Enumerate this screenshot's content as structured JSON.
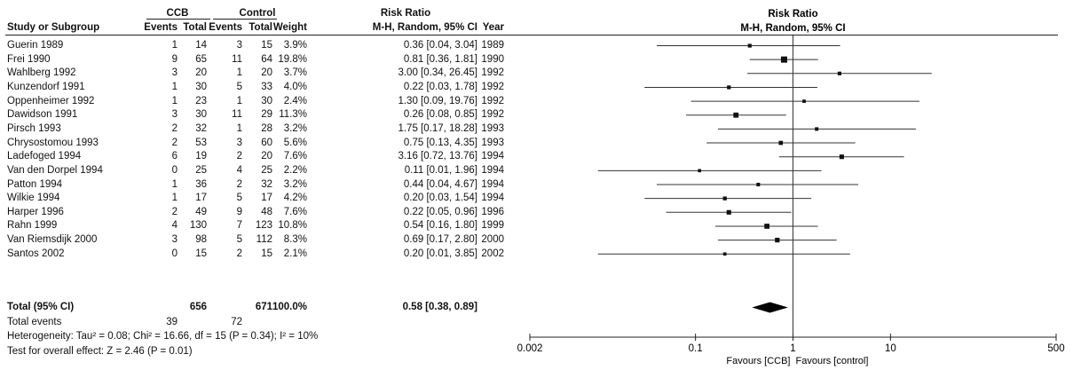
{
  "headers": {
    "ccb": "CCB",
    "control": "Control",
    "risk_ratio": "Risk Ratio",
    "study": "Study or Subgroup",
    "events": "Events",
    "total": "Total",
    "weight": "Weight",
    "method": "M-H, Random, 95% CI",
    "year": "Year",
    "plot_title": "Risk Ratio",
    "plot_method": "M-H, Random, 95% CI"
  },
  "studies": [
    {
      "name": "Guerin 1989",
      "ccb_events": "1",
      "ccb_total": "14",
      "ctrl_events": "3",
      "ctrl_total": "15",
      "weight": "3.9%",
      "rr_text": "0.36 [0.04, 3.04]",
      "year": "1989",
      "rr": 0.36,
      "lo": 0.04,
      "hi": 3.04,
      "w": 3.9
    },
    {
      "name": "Frei 1990",
      "ccb_events": "9",
      "ccb_total": "65",
      "ctrl_events": "11",
      "ctrl_total": "64",
      "weight": "19.8%",
      "rr_text": "0.81 [0.36, 1.81]",
      "year": "1990",
      "rr": 0.81,
      "lo": 0.36,
      "hi": 1.81,
      "w": 19.8
    },
    {
      "name": "Wahlberg 1992",
      "ccb_events": "3",
      "ccb_total": "20",
      "ctrl_events": "1",
      "ctrl_total": "20",
      "weight": "3.7%",
      "rr_text": "3.00 [0.34, 26.45]",
      "year": "1992",
      "rr": 3.0,
      "lo": 0.34,
      "hi": 26.45,
      "w": 3.7
    },
    {
      "name": "Kunzendorf 1991",
      "ccb_events": "1",
      "ccb_total": "30",
      "ctrl_events": "5",
      "ctrl_total": "33",
      "weight": "4.0%",
      "rr_text": "0.22 [0.03, 1.78]",
      "year": "1992",
      "rr": 0.22,
      "lo": 0.03,
      "hi": 1.78,
      "w": 4.0
    },
    {
      "name": "Oppenheimer 1992",
      "ccb_events": "1",
      "ccb_total": "23",
      "ctrl_events": "1",
      "ctrl_total": "30",
      "weight": "2.4%",
      "rr_text": "1.30 [0.09, 19.76]",
      "year": "1992",
      "rr": 1.3,
      "lo": 0.09,
      "hi": 19.76,
      "w": 2.4
    },
    {
      "name": "Dawidson 1991",
      "ccb_events": "3",
      "ccb_total": "30",
      "ctrl_events": "11",
      "ctrl_total": "29",
      "weight": "11.3%",
      "rr_text": "0.26 [0.08, 0.85]",
      "year": "1992",
      "rr": 0.26,
      "lo": 0.08,
      "hi": 0.85,
      "w": 11.3
    },
    {
      "name": "Pirsch 1993",
      "ccb_events": "2",
      "ccb_total": "32",
      "ctrl_events": "1",
      "ctrl_total": "28",
      "weight": "3.2%",
      "rr_text": "1.75 [0.17, 18.28]",
      "year": "1993",
      "rr": 1.75,
      "lo": 0.17,
      "hi": 18.28,
      "w": 3.2
    },
    {
      "name": "Chrysostomou 1993",
      "ccb_events": "2",
      "ccb_total": "53",
      "ctrl_events": "3",
      "ctrl_total": "60",
      "weight": "5.6%",
      "rr_text": "0.75 [0.13, 4.35]",
      "year": "1993",
      "rr": 0.75,
      "lo": 0.13,
      "hi": 4.35,
      "w": 5.6
    },
    {
      "name": "Ladefoged 1994",
      "ccb_events": "6",
      "ccb_total": "19",
      "ctrl_events": "2",
      "ctrl_total": "20",
      "weight": "7.6%",
      "rr_text": "3.16 [0.72, 13.76]",
      "year": "1994",
      "rr": 3.16,
      "lo": 0.72,
      "hi": 13.76,
      "w": 7.6
    },
    {
      "name": "Van den Dorpel 1994",
      "ccb_events": "0",
      "ccb_total": "25",
      "ctrl_events": "4",
      "ctrl_total": "25",
      "weight": "2.2%",
      "rr_text": "0.11 [0.01, 1.96]",
      "year": "1994",
      "rr": 0.11,
      "lo": 0.01,
      "hi": 1.96,
      "w": 2.2
    },
    {
      "name": "Patton 1994",
      "ccb_events": "1",
      "ccb_total": "36",
      "ctrl_events": "2",
      "ctrl_total": "32",
      "weight": "3.2%",
      "rr_text": "0.44 [0.04, 4.67]",
      "year": "1994",
      "rr": 0.44,
      "lo": 0.04,
      "hi": 4.67,
      "w": 3.2
    },
    {
      "name": "Wilkie 1994",
      "ccb_events": "1",
      "ccb_total": "17",
      "ctrl_events": "5",
      "ctrl_total": "17",
      "weight": "4.2%",
      "rr_text": "0.20 [0.03, 1.54]",
      "year": "1994",
      "rr": 0.2,
      "lo": 0.03,
      "hi": 1.54,
      "w": 4.2
    },
    {
      "name": "Harper 1996",
      "ccb_events": "2",
      "ccb_total": "49",
      "ctrl_events": "9",
      "ctrl_total": "48",
      "weight": "7.6%",
      "rr_text": "0.22 [0.05, 0.96]",
      "year": "1996",
      "rr": 0.22,
      "lo": 0.05,
      "hi": 0.96,
      "w": 7.6
    },
    {
      "name": "Rahn 1999",
      "ccb_events": "4",
      "ccb_total": "130",
      "ctrl_events": "7",
      "ctrl_total": "123",
      "weight": "10.8%",
      "rr_text": "0.54 [0.16, 1.80]",
      "year": "1999",
      "rr": 0.54,
      "lo": 0.16,
      "hi": 1.8,
      "w": 10.8
    },
    {
      "name": "Van Riemsdijk 2000",
      "ccb_events": "3",
      "ccb_total": "98",
      "ctrl_events": "5",
      "ctrl_total": "112",
      "weight": "8.3%",
      "rr_text": "0.69 [0.17, 2.80]",
      "year": "2000",
      "rr": 0.69,
      "lo": 0.17,
      "hi": 2.8,
      "w": 8.3
    },
    {
      "name": "Santos 2002",
      "ccb_events": "0",
      "ccb_total": "15",
      "ctrl_events": "2",
      "ctrl_total": "15",
      "weight": "2.1%",
      "rr_text": "0.20 [0.01, 3.85]",
      "year": "2002",
      "rr": 0.2,
      "lo": 0.01,
      "hi": 3.85,
      "w": 2.1
    }
  ],
  "total": {
    "label": "Total (95% CI)",
    "ccb_total": "656",
    "ctrl_total": "671",
    "weight": "100.0%",
    "rr_text": "0.58 [0.38, 0.89]",
    "rr": 0.58,
    "lo": 0.38,
    "hi": 0.89
  },
  "total_events": {
    "label": "Total events",
    "ccb": "39",
    "ctrl": "72"
  },
  "heterogeneity": "Heterogeneity: Tau² = 0.08; Chi² = 16.66, df = 15 (P = 0.34); I² = 10%",
  "overall_effect": "Test for overall effect: Z = 2.46 (P = 0.01)",
  "axis": {
    "ticks": [
      0.002,
      0.1,
      1,
      10,
      500
    ],
    "tick_labels": [
      "0.002",
      "0.1",
      "1",
      "10",
      "500"
    ],
    "min": 0.002,
    "max": 500,
    "scale": "log",
    "favours_left": "Favours [CCB]",
    "favours_right": "Favours [control]"
  },
  "chart_data": {
    "type": "forest",
    "title": "Risk Ratio",
    "subtitle": "M-H, Random, 95% CI",
    "xscale": "log",
    "xlim": [
      0.002,
      500
    ],
    "x_ticks": [
      0.002,
      0.1,
      1,
      10,
      500
    ],
    "reference_line": 1,
    "categories": [
      "Guerin 1989",
      "Frei 1990",
      "Wahlberg 1992",
      "Kunzendorf 1991",
      "Oppenheimer 1992",
      "Dawidson 1991",
      "Pirsch 1993",
      "Chrysostomou 1993",
      "Ladefoged 1994",
      "Van den Dorpel 1994",
      "Patton 1994",
      "Wilkie 1994",
      "Harper 1996",
      "Rahn 1999",
      "Van Riemsdijk 2000",
      "Santos 2002"
    ],
    "estimates": [
      0.36,
      0.81,
      3.0,
      0.22,
      1.3,
      0.26,
      1.75,
      0.75,
      3.16,
      0.11,
      0.44,
      0.2,
      0.22,
      0.54,
      0.69,
      0.2
    ],
    "ci_lower": [
      0.04,
      0.36,
      0.34,
      0.03,
      0.09,
      0.08,
      0.17,
      0.13,
      0.72,
      0.01,
      0.04,
      0.03,
      0.05,
      0.16,
      0.17,
      0.01
    ],
    "ci_upper": [
      3.04,
      1.81,
      26.45,
      1.78,
      19.76,
      0.85,
      18.28,
      4.35,
      13.76,
      1.96,
      4.67,
      1.54,
      0.96,
      1.8,
      2.8,
      3.85
    ],
    "weights": [
      3.9,
      19.8,
      3.7,
      4.0,
      2.4,
      11.3,
      3.2,
      5.6,
      7.6,
      2.2,
      3.2,
      4.2,
      7.6,
      10.8,
      8.3,
      2.1
    ],
    "pooled": {
      "estimate": 0.58,
      "ci_lower": 0.38,
      "ci_upper": 0.89
    },
    "xlabel_left": "Favours [CCB]",
    "xlabel_right": "Favours [control]"
  }
}
